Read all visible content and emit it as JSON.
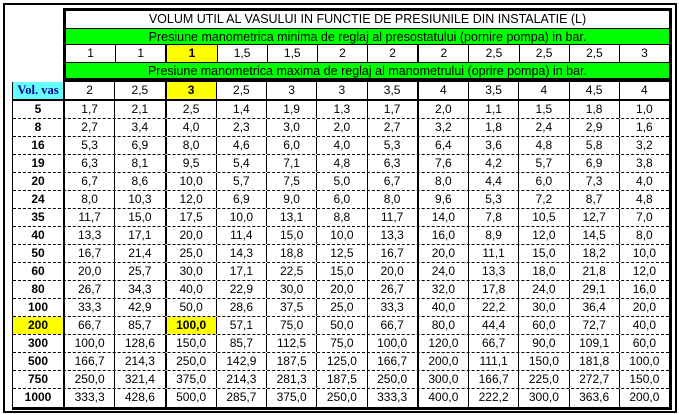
{
  "chart_data": {
    "type": "table",
    "title": "VOLUM UTIL AL VASULUI IN FUNCTIE DE PRESIUNILE DIN INSTALATIE (L)",
    "header_min_label": "Presiune manometrica minima de reglaj al presostatului (pornire pompa) in bar.",
    "header_max_label": "Presiune manometrica maxima de reglaj al manometrului (oprire pompa) in bar.",
    "row_header": "Vol. vas",
    "min_pressures": [
      "1",
      "1",
      "1",
      "1,5",
      "1,5",
      "2",
      "2",
      "2",
      "2,5",
      "2,5",
      "2,5",
      "3"
    ],
    "max_pressures": [
      "2",
      "2,5",
      "3",
      "2,5",
      "3",
      "3",
      "3,5",
      "4",
      "3,5",
      "4",
      "4,5",
      "4"
    ],
    "highlight": {
      "column_index": 2,
      "row_label": "200"
    },
    "rows": [
      {
        "label": "5",
        "values": [
          "1,7",
          "2,1",
          "2,5",
          "1,4",
          "1,9",
          "1,3",
          "1,7",
          "2,0",
          "1,1",
          "1,5",
          "1,8",
          "1,0"
        ]
      },
      {
        "label": "8",
        "values": [
          "2,7",
          "3,4",
          "4,0",
          "2,3",
          "3,0",
          "2,0",
          "2,7",
          "3,2",
          "1,8",
          "2,4",
          "2,9",
          "1,6"
        ]
      },
      {
        "label": "16",
        "values": [
          "5,3",
          "6,9",
          "8,0",
          "4,6",
          "6,0",
          "4,0",
          "5,3",
          "6,4",
          "3,6",
          "4,8",
          "5,8",
          "3,2"
        ]
      },
      {
        "label": "19",
        "values": [
          "6,3",
          "8,1",
          "9,5",
          "5,4",
          "7,1",
          "4,8",
          "6,3",
          "7,6",
          "4,2",
          "5,7",
          "6,9",
          "3,8"
        ]
      },
      {
        "label": "20",
        "values": [
          "6,7",
          "8,6",
          "10,0",
          "5,7",
          "7,5",
          "5,0",
          "6,7",
          "8,0",
          "4,4",
          "6,0",
          "7,3",
          "4,0"
        ]
      },
      {
        "label": "24",
        "values": [
          "8,0",
          "10,3",
          "12,0",
          "6,9",
          "9,0",
          "6,0",
          "8,0",
          "9,6",
          "5,3",
          "7,2",
          "8,7",
          "4,8"
        ]
      },
      {
        "label": "35",
        "values": [
          "11,7",
          "15,0",
          "17,5",
          "10,0",
          "13,1",
          "8,8",
          "11,7",
          "14,0",
          "7,8",
          "10,5",
          "12,7",
          "7,0"
        ]
      },
      {
        "label": "40",
        "values": [
          "13,3",
          "17,1",
          "20,0",
          "11,4",
          "15,0",
          "10,0",
          "13,3",
          "16,0",
          "8,9",
          "12,0",
          "14,5",
          "8,0"
        ]
      },
      {
        "label": "50",
        "values": [
          "16,7",
          "21,4",
          "25,0",
          "14,3",
          "18,8",
          "12,5",
          "16,7",
          "20,0",
          "11,1",
          "15,0",
          "18,2",
          "10,0"
        ]
      },
      {
        "label": "60",
        "values": [
          "20,0",
          "25,7",
          "30,0",
          "17,1",
          "22,5",
          "15,0",
          "20,0",
          "24,0",
          "13,3",
          "18,0",
          "21,8",
          "12,0"
        ]
      },
      {
        "label": "80",
        "values": [
          "26,7",
          "34,3",
          "40,0",
          "22,9",
          "30,0",
          "20,0",
          "26,7",
          "32,0",
          "17,8",
          "24,0",
          "29,1",
          "16,0"
        ]
      },
      {
        "label": "100",
        "values": [
          "33,3",
          "42,9",
          "50,0",
          "28,6",
          "37,5",
          "25,0",
          "33,3",
          "40,0",
          "22,2",
          "30,0",
          "36,4",
          "20,0"
        ]
      },
      {
        "label": "200",
        "values": [
          "66,7",
          "85,7",
          "100,0",
          "57,1",
          "75,0",
          "50,0",
          "66,7",
          "80,0",
          "44,4",
          "60,0",
          "72,7",
          "40,0"
        ]
      },
      {
        "label": "300",
        "values": [
          "100,0",
          "128,6",
          "150,0",
          "85,7",
          "112,5",
          "75,0",
          "100,0",
          "120,0",
          "66,7",
          "90,0",
          "109,1",
          "60,0"
        ]
      },
      {
        "label": "500",
        "values": [
          "166,7",
          "214,3",
          "250,0",
          "142,9",
          "187,5",
          "125,0",
          "166,7",
          "200,0",
          "111,1",
          "150,0",
          "181,8",
          "100,0"
        ]
      },
      {
        "label": "750",
        "values": [
          "250,0",
          "321,4",
          "375,0",
          "214,3",
          "281,3",
          "187,5",
          "250,0",
          "300,0",
          "166,7",
          "225,0",
          "272,7",
          "150,0"
        ]
      },
      {
        "label": "1000",
        "values": [
          "333,3",
          "428,6",
          "500,0",
          "285,7",
          "375,0",
          "250,0",
          "333,3",
          "400,0",
          "222,2",
          "300,0",
          "363,6",
          "200,0"
        ]
      }
    ],
    "colors": {
      "header_band": "#00FF00",
      "highlight": "#FFFF00",
      "corner_cell_bg": "#66FFFF",
      "corner_cell_text": "#000099",
      "border": "#000000"
    }
  }
}
